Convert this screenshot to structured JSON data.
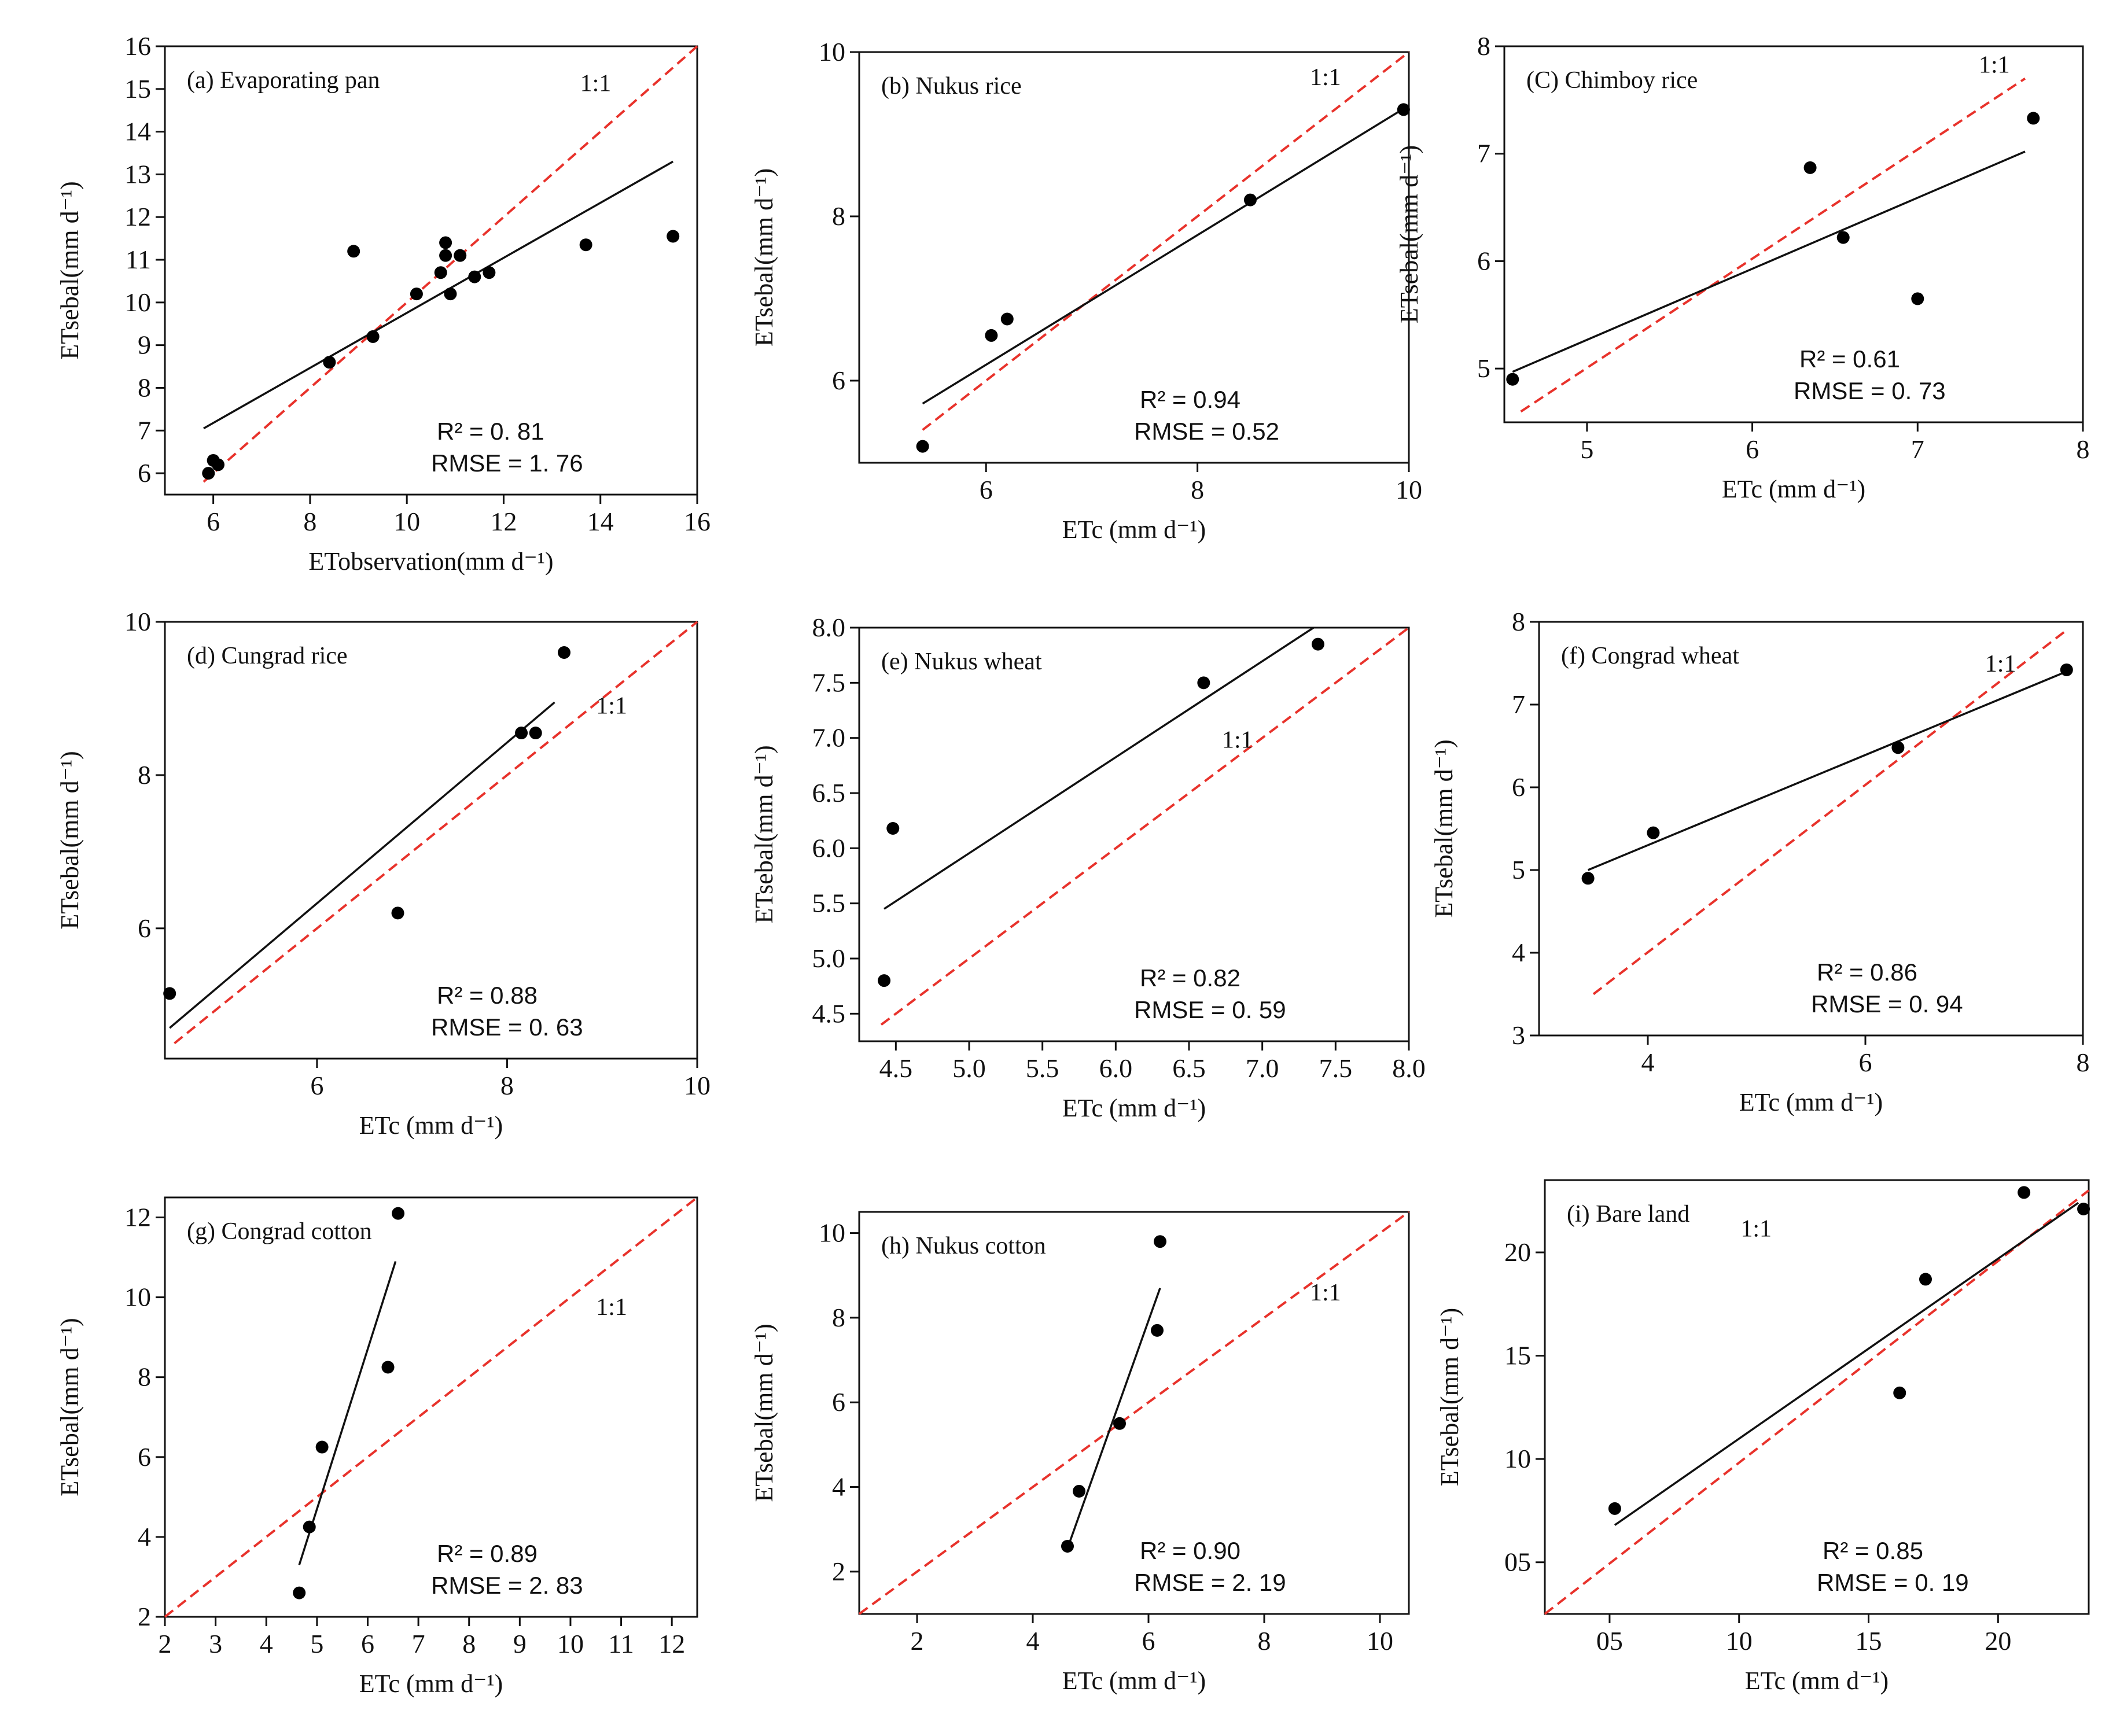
{
  "figure": {
    "colors": {
      "reference_line": "#e8322b",
      "fit_line": "#111111",
      "points": "#000000",
      "axes": "#111111"
    }
  },
  "chart_data": [
    {
      "type": "scatter",
      "id": "a",
      "title": "(a)  Evaporating pan",
      "xlabel": "ETobservation(mm d⁻¹)",
      "ylabel": "ETsebal(mm d⁻¹)",
      "xlim": [
        5,
        16
      ],
      "ylim": [
        5.5,
        16
      ],
      "xticks": [
        6,
        8,
        10,
        12,
        14,
        16
      ],
      "xtick_labels": [
        "6",
        "8",
        "10",
        "12",
        "14",
        "16"
      ],
      "yticks": [
        6,
        7,
        8,
        9,
        10,
        11,
        12,
        13,
        14,
        15,
        16
      ],
      "ytick_labels": [
        "6",
        "7",
        "8",
        "9",
        "10",
        "11",
        "12",
        "13",
        "14",
        "15",
        "16"
      ],
      "x": [
        5.9,
        6.0,
        6.1,
        8.4,
        8.9,
        9.3,
        10.2,
        10.7,
        10.8,
        10.8,
        10.9,
        11.1,
        11.4,
        11.7,
        13.7,
        15.5
      ],
      "y": [
        6.0,
        6.3,
        6.2,
        8.6,
        11.2,
        9.2,
        10.2,
        10.7,
        11.1,
        11.4,
        10.2,
        11.1,
        10.6,
        10.7,
        11.35,
        11.55
      ],
      "fit": [
        [
          5.8,
          7.05
        ],
        [
          15.5,
          13.3
        ]
      ],
      "one_to_one": [
        [
          5.8,
          5.8
        ],
        [
          16,
          16
        ]
      ],
      "one_to_one_label": "1:1",
      "r2_label": "R² =  0. 81",
      "rmse_label": "RMSE  =  1. 76"
    },
    {
      "type": "scatter",
      "id": "b",
      "title": "(b)  Nukus rice",
      "xlabel": "ETc (mm d⁻¹)",
      "ylabel": "ETsebal(mm d⁻¹)",
      "xlim": [
        4.8,
        10
      ],
      "ylim": [
        5,
        10
      ],
      "xticks": [
        6,
        8,
        10
      ],
      "xtick_labels": [
        "6",
        "8",
        "10"
      ],
      "yticks": [
        6,
        8,
        10
      ],
      "ytick_labels": [
        "6",
        "8",
        "10"
      ],
      "x": [
        5.4,
        6.05,
        6.2,
        8.5,
        9.95
      ],
      "y": [
        5.2,
        6.55,
        6.75,
        8.2,
        9.3
      ],
      "fit": [
        [
          5.4,
          5.72
        ],
        [
          10,
          9.35
        ]
      ],
      "one_to_one": [
        [
          5.4,
          5.4
        ],
        [
          10,
          10
        ]
      ],
      "one_to_one_label": "1:1",
      "r2_label": "R² = 0.94",
      "rmse_label": "RMSE  =  0.52"
    },
    {
      "type": "scatter",
      "id": "c",
      "title": "(C)  Chimboy rice",
      "xlabel": "ETc (mm d⁻¹)",
      "ylabel": "ETsebal(mm d⁻¹)",
      "xlim": [
        4.5,
        8
      ],
      "ylim": [
        4.5,
        8
      ],
      "xticks": [
        5,
        6,
        7,
        8
      ],
      "xtick_labels": [
        "5",
        "6",
        "7",
        "8"
      ],
      "yticks": [
        5,
        6,
        7,
        8
      ],
      "ytick_labels": [
        "5",
        "6",
        "7",
        "8"
      ],
      "x": [
        4.55,
        6.35,
        6.55,
        7.0,
        7.7
      ],
      "y": [
        4.9,
        6.87,
        6.22,
        5.65,
        7.33
      ],
      "fit": [
        [
          4.55,
          4.97
        ],
        [
          7.65,
          7.02
        ]
      ],
      "one_to_one": [
        [
          4.6,
          4.6
        ],
        [
          7.65,
          7.7
        ]
      ],
      "one_to_one_label": "1:1",
      "r2_label": "R² =  0.61",
      "rmse_label": "RMSE  =  0. 73"
    },
    {
      "type": "scatter",
      "id": "d",
      "title": "(d)  Cungrad rice",
      "xlabel": "ETc (mm d⁻¹)",
      "ylabel": "ETsebal(mm d⁻¹)",
      "xlim": [
        4.4,
        10
      ],
      "ylim": [
        4.3,
        10
      ],
      "xticks": [
        6,
        8,
        10
      ],
      "xtick_labels": [
        "6",
        "8",
        "10"
      ],
      "yticks": [
        6,
        8,
        10
      ],
      "ytick_labels": [
        "6",
        "8",
        "10"
      ],
      "x": [
        4.45,
        6.85,
        8.15,
        8.3,
        8.6
      ],
      "y": [
        5.15,
        6.2,
        8.55,
        8.55,
        9.6
      ],
      "fit": [
        [
          4.45,
          4.7
        ],
        [
          8.5,
          8.95
        ]
      ],
      "one_to_one": [
        [
          4.5,
          4.5
        ],
        [
          10,
          10
        ]
      ],
      "one_to_one_label": "1:1",
      "r2_label": "R²  =  0.88",
      "rmse_label": "RMSE  = 0. 63"
    },
    {
      "type": "scatter",
      "id": "e",
      "title": "(e)  Nukus wheat",
      "xlabel": "ETc (mm d⁻¹)",
      "ylabel": "ETsebal(mm d⁻¹)",
      "xlim": [
        4.25,
        8
      ],
      "ylim": [
        4.25,
        8
      ],
      "xticks": [
        4.5,
        5.0,
        5.5,
        6.0,
        6.5,
        7.0,
        7.5,
        8.0
      ],
      "xtick_labels": [
        "4.5",
        "5.0",
        "5.5",
        "6.0",
        "6.5",
        "7.0",
        "7.5",
        "8.0"
      ],
      "yticks": [
        4.5,
        5.0,
        5.5,
        6.0,
        6.5,
        7.0,
        7.5,
        8.0
      ],
      "ytick_labels": [
        "4.5",
        "5.0",
        "5.5",
        "6.0",
        "6.5",
        "7.0",
        "7.5",
        "8.0"
      ],
      "x": [
        4.42,
        4.48,
        6.6,
        7.38
      ],
      "y": [
        4.8,
        6.18,
        7.5,
        7.85
      ],
      "fit": [
        [
          4.42,
          5.45
        ],
        [
          7.35,
          8.0
        ]
      ],
      "one_to_one": [
        [
          4.4,
          4.4
        ],
        [
          8,
          8
        ]
      ],
      "one_to_one_label": "1:1",
      "r2_label": "R² = 0.82",
      "rmse_label": "RMSE  =  0. 59"
    },
    {
      "type": "scatter",
      "id": "f",
      "title": "(f)  Congrad wheat",
      "xlabel": "ETc (mm d⁻¹)",
      "ylabel": "ETsebal(mm d⁻¹)",
      "xlim": [
        3,
        8
      ],
      "ylim": [
        3,
        8
      ],
      "xticks": [
        4,
        6,
        8
      ],
      "xtick_labels": [
        "4",
        "6",
        "8"
      ],
      "yticks": [
        3,
        4,
        5,
        6,
        7,
        8
      ],
      "ytick_labels": [
        "3",
        "4",
        "5",
        "6",
        "7",
        "8"
      ],
      "x": [
        3.45,
        4.05,
        6.3,
        7.85
      ],
      "y": [
        4.9,
        5.45,
        6.48,
        7.42
      ],
      "fit": [
        [
          3.45,
          5.0
        ],
        [
          7.85,
          7.4
        ]
      ],
      "one_to_one": [
        [
          3.5,
          3.5
        ],
        [
          7.85,
          7.9
        ]
      ],
      "one_to_one_label": "1:1",
      "r2_label": "R²  =  0.86",
      "rmse_label": "RMSE  =  0. 94"
    },
    {
      "type": "scatter",
      "id": "g",
      "title": "(g)  Congrad cotton",
      "xlabel": "ETc (mm d⁻¹)",
      "ylabel": "ETsebal(mm d⁻¹)",
      "xlim": [
        2,
        12.5
      ],
      "ylim": [
        2,
        12.5
      ],
      "xticks": [
        2,
        3,
        4,
        5,
        6,
        7,
        8,
        9,
        10,
        11,
        12
      ],
      "xtick_labels": [
        "2",
        "3",
        "4",
        "5",
        "6",
        "7",
        "8",
        "9",
        "10",
        "11",
        "12"
      ],
      "yticks": [
        2,
        4,
        6,
        8,
        10,
        12
      ],
      "ytick_labels": [
        "2",
        "4",
        "6",
        "8",
        "10",
        "12"
      ],
      "x": [
        4.65,
        4.85,
        5.1,
        6.4,
        6.6
      ],
      "y": [
        2.6,
        4.25,
        6.25,
        8.25,
        12.1
      ],
      "fit": [
        [
          4.65,
          3.3
        ],
        [
          6.55,
          10.9
        ]
      ],
      "one_to_one": [
        [
          2,
          2
        ],
        [
          12.5,
          12.5
        ]
      ],
      "one_to_one_label": "1:1",
      "r2_label": "R²  =  0.89",
      "rmse_label": "RMSE  =  2. 83"
    },
    {
      "type": "scatter",
      "id": "h",
      "title": "(h)  Nukus cotton",
      "xlabel": "ETc (mm d⁻¹)",
      "ylabel": "ETsebal(mm d⁻¹)",
      "xlim": [
        1,
        10.5
      ],
      "ylim": [
        1,
        10.5
      ],
      "xticks": [
        2,
        4,
        6,
        8,
        10
      ],
      "xtick_labels": [
        "2",
        "4",
        "6",
        "8",
        "10"
      ],
      "yticks": [
        2,
        4,
        6,
        8,
        10
      ],
      "ytick_labels": [
        "2",
        "4",
        "6",
        "8",
        "10"
      ],
      "x": [
        4.6,
        4.8,
        5.5,
        6.15,
        6.2
      ],
      "y": [
        2.6,
        3.9,
        5.5,
        7.7,
        9.8
      ],
      "fit": [
        [
          4.6,
          2.55
        ],
        [
          6.2,
          8.7
        ]
      ],
      "one_to_one": [
        [
          1,
          1
        ],
        [
          10.5,
          10.5
        ]
      ],
      "one_to_one_label": "1:1",
      "r2_label": "R² = 0.90",
      "rmse_label": "RMSE  =  2. 19"
    },
    {
      "type": "scatter",
      "id": "i",
      "title": "(i) Bare land",
      "xlabel": "ETc (mm d⁻¹)",
      "ylabel": "ETsebal(mm d⁻¹)",
      "xlim": [
        0.25,
        2.35
      ],
      "ylim": [
        0.25,
        2.35
      ],
      "xticks": [
        0.5,
        1.0,
        1.5,
        2.0
      ],
      "xtick_labels": [
        "05",
        "10",
        "15",
        "20"
      ],
      "yticks": [
        0.5,
        1.0,
        1.5,
        2.0
      ],
      "ytick_labels": [
        "05",
        "10",
        "15",
        "20"
      ],
      "x": [
        0.52,
        1.62,
        1.72,
        2.1,
        2.33
      ],
      "y": [
        0.76,
        1.32,
        1.87,
        2.29,
        2.21
      ],
      "fit": [
        [
          0.52,
          0.68
        ],
        [
          2.31,
          2.24
        ]
      ],
      "one_to_one": [
        [
          0.25,
          0.25
        ],
        [
          2.35,
          2.3
        ]
      ],
      "one_to_one_label": "1:1",
      "r2_label": "R² =  0.85",
      "rmse_label": "RMSE  =  0. 19"
    }
  ]
}
